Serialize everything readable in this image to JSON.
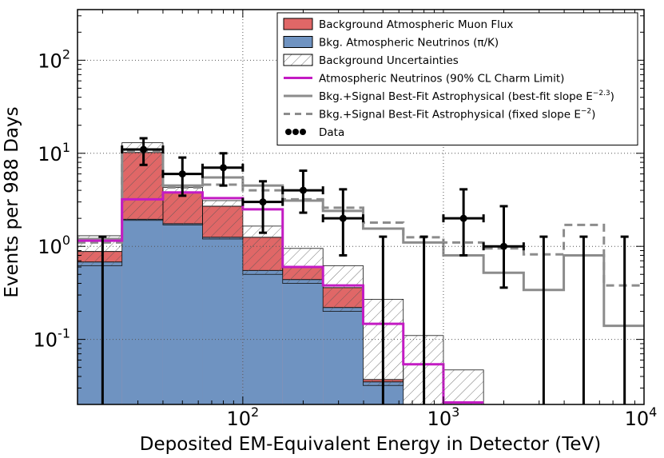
{
  "chart_data": {
    "type": "histogram",
    "xlabel": "Deposited EM-Equivalent Energy in Detector (TeV)",
    "ylabel": "Events per 988 Days",
    "xscale": "log",
    "yscale": "log",
    "xlim": [
      15,
      10000
    ],
    "ylim": [
      0.02,
      350
    ],
    "grid": true,
    "legend_position": "top-right",
    "x_ticks": [
      {
        "value": 100,
        "base": "10",
        "exp": "2"
      },
      {
        "value": 1000,
        "base": "10",
        "exp": "3"
      },
      {
        "value": 10000,
        "base": "10",
        "exp": "4"
      }
    ],
    "y_ticks": [
      {
        "value": 0.1,
        "base": "10",
        "exp": "-1"
      },
      {
        "value": 1,
        "base": "10",
        "exp": "0"
      },
      {
        "value": 10,
        "base": "10",
        "exp": "1"
      },
      {
        "value": 100,
        "base": "10",
        "exp": "2"
      }
    ],
    "bin_edges": [
      15,
      25,
      40,
      63,
      100,
      158,
      251,
      398,
      631,
      1000,
      1585,
      2512,
      3981,
      6310,
      10000
    ],
    "series": [
      {
        "name": "Background Atmospheric Muon Flux",
        "style": "fill",
        "color": "#e06767",
        "values": [
          0.88,
          10.2,
          3.85,
          2.7,
          1.25,
          0.61,
          0.36,
          0.037,
          null,
          null,
          null,
          null,
          null,
          null
        ]
      },
      {
        "name": "Bkg. Atmospheric Neutrinos (π/K)",
        "style": "fill",
        "color": "#6f93c1",
        "values": [
          0.68,
          1.95,
          1.75,
          1.25,
          0.55,
          0.44,
          0.22,
          0.035,
          0.02,
          0.02,
          null,
          null,
          null,
          null
        ]
      },
      {
        "name": "Background Uncertainties",
        "style": "hatch",
        "color": "#444444",
        "low": [
          0.62,
          1.9,
          1.7,
          1.2,
          0.5,
          0.4,
          0.2,
          0.032,
          0.02,
          0.02,
          null,
          null,
          null,
          null
        ],
        "high": [
          1.3,
          13.0,
          4.3,
          3.1,
          1.65,
          0.95,
          0.62,
          0.27,
          0.11,
          0.047,
          null,
          null,
          null,
          null
        ]
      },
      {
        "name": "Atmospheric Neutrinos (90% CL Charm Limit)",
        "style": "step",
        "color": "#c31bc3",
        "values": [
          1.15,
          3.2,
          3.8,
          3.3,
          2.5,
          0.6,
          0.38,
          0.147,
          0.054,
          0.021,
          null,
          null,
          null,
          null
        ]
      },
      {
        "name": "Bkg.+Signal Best-Fit Astrophysical (best-fit slope E^-2.3)",
        "style": "step",
        "color": "#8c8c8c",
        "values": [
          1.2,
          11.0,
          4.5,
          5.5,
          4.5,
          3.1,
          2.4,
          1.55,
          1.1,
          0.8,
          0.52,
          0.34,
          0.8,
          0.14
        ]
      },
      {
        "name": "Bkg.+Signal Best-Fit Astrophysical (fixed slope E^-2)",
        "style": "dashed-step",
        "color": "#8c8c8c",
        "values": [
          1.1,
          10.5,
          4.3,
          4.6,
          4.0,
          3.2,
          2.6,
          1.8,
          1.25,
          1.1,
          0.95,
          0.82,
          1.7,
          0.38
        ]
      }
    ],
    "data_points": {
      "name": "Data",
      "color": "#000000",
      "points": [
        {
          "x": 20,
          "y": null,
          "yhi": 1.27
        },
        {
          "x": 32,
          "y": 11,
          "ylo": 7.5,
          "yhi": 14.5
        },
        {
          "x": 50,
          "y": 6,
          "ylo": 3.5,
          "yhi": 9
        },
        {
          "x": 80,
          "y": 7,
          "ylo": 4.5,
          "yhi": 10
        },
        {
          "x": 126,
          "y": 3,
          "ylo": 1.4,
          "yhi": 5
        },
        {
          "x": 200,
          "y": 4,
          "ylo": 2.3,
          "yhi": 6.5
        },
        {
          "x": 316,
          "y": 2,
          "ylo": 0.8,
          "yhi": 4.1
        },
        {
          "x": 500,
          "y": null,
          "yhi": 1.27
        },
        {
          "x": 800,
          "y": null,
          "yhi": 1.27
        },
        {
          "x": 1260,
          "y": 2,
          "ylo": 0.8,
          "yhi": 4.1
        },
        {
          "x": 2000,
          "y": 1,
          "ylo": 0.36,
          "yhi": 2.7
        },
        {
          "x": 3160,
          "y": null,
          "yhi": 1.27
        },
        {
          "x": 5000,
          "y": null,
          "yhi": 1.27
        },
        {
          "x": 8000,
          "y": null,
          "yhi": 1.27
        }
      ]
    },
    "legend": [
      {
        "text": "Background Atmospheric Muon Flux",
        "symbol": "patch-red"
      },
      {
        "text": "Bkg. Atmospheric Neutrinos (π/K)",
        "symbol": "patch-blue"
      },
      {
        "text": "Background Uncertainties",
        "symbol": "patch-hatch"
      },
      {
        "text": "Atmospheric Neutrinos (90% CL Charm Limit)",
        "symbol": "line-magenta"
      },
      {
        "text": "Bkg.+Signal Best-Fit Astrophysical (best-fit slope E",
        "sup": "−2.3",
        "after": ")",
        "symbol": "line-gray"
      },
      {
        "text": "Bkg.+Signal Best-Fit Astrophysical (fixed slope E",
        "sup": "−2",
        "after": ")",
        "symbol": "line-gray-dashed"
      },
      {
        "text": "Data",
        "symbol": "dots"
      }
    ]
  }
}
